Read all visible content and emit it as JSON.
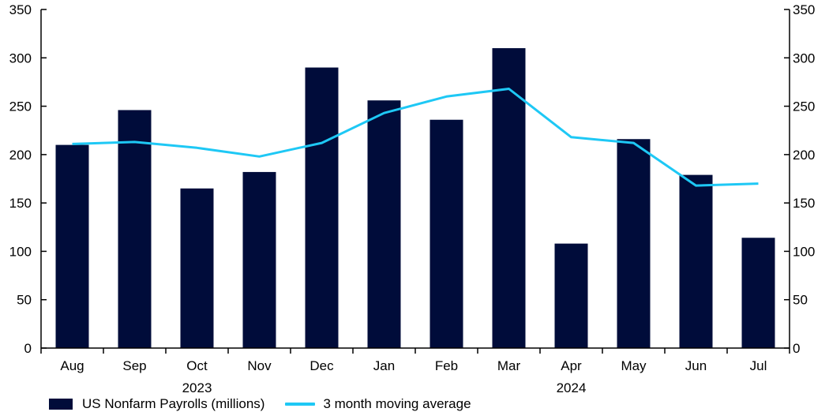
{
  "chart_data": {
    "type": "bar",
    "categories": [
      "Aug",
      "Sep",
      "Oct",
      "Nov",
      "Dec",
      "Jan",
      "Feb",
      "Mar",
      "Apr",
      "May",
      "Jun",
      "Jul"
    ],
    "year_labels": [
      {
        "label": "2023",
        "under": "Oct"
      },
      {
        "label": "2024",
        "under": "Apr"
      }
    ],
    "series": [
      {
        "name": "US Nonfarm Payrolls (millions)",
        "type": "bar",
        "color": "#000c3a",
        "values": [
          210,
          246,
          165,
          182,
          290,
          256,
          236,
          310,
          108,
          216,
          179,
          114
        ]
      },
      {
        "name": "3 month moving average",
        "type": "line",
        "color": "#1ec8f5",
        "values": [
          211,
          213,
          207,
          198,
          212,
          243,
          260,
          268,
          218,
          212,
          168,
          170
        ]
      }
    ],
    "ylim": [
      0,
      350
    ],
    "yticks": [
      0,
      50,
      100,
      150,
      200,
      250,
      300,
      350
    ],
    "right_axis": true,
    "grid": false,
    "legend_position": "bottom-left",
    "title": "",
    "xlabel": "",
    "ylabel": ""
  }
}
